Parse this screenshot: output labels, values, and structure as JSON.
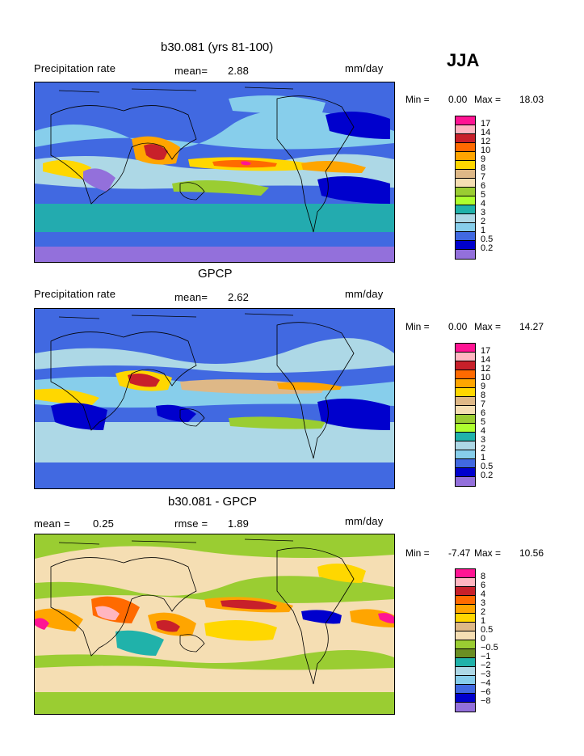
{
  "season": "JJA",
  "units": "mm/day",
  "panels": [
    {
      "title": "b30.081 (yrs 81-100)",
      "left_label": "Precipitation rate",
      "stat_label": "mean=",
      "stat_value": "2.88",
      "min_label": "Min =",
      "min_value": "0.00",
      "max_label": "Max =",
      "max_value": "18.03"
    },
    {
      "title": "GPCP",
      "left_label": "Precipitation rate",
      "stat_label": "mean=",
      "stat_value": "2.62",
      "min_label": "Min =",
      "min_value": "0.00",
      "max_label": "Max =",
      "max_value": "14.27"
    },
    {
      "title": "b30.081 - GPCP",
      "left_label": "mean =",
      "left_value": "0.25",
      "stat_label": "rmse =",
      "stat_value": "1.89",
      "min_label": "Min =",
      "min_value": "-7.47",
      "max_label": "Max =",
      "max_value": "10.56"
    }
  ],
  "colorbar_precip": {
    "labels": [
      "17",
      "14",
      "12",
      "10",
      "9",
      "8",
      "7",
      "6",
      "5",
      "4",
      "3",
      "2",
      "1",
      "0.5",
      "0.2"
    ],
    "colors": [
      "#ff1493",
      "#ffb6c1",
      "#c8202a",
      "#ff6a00",
      "#ffa500",
      "#ffd700",
      "#deb887",
      "#f5deb3",
      "#9acd32",
      "#adff2f",
      "#20b2aa",
      "#add8e6",
      "#87ceeb",
      "#4169e1",
      "#0000cd",
      "#9370db"
    ]
  },
  "colorbar_diff": {
    "labels": [
      "8",
      "6",
      "4",
      "3",
      "2",
      "1",
      "0.5",
      "0",
      "−0.5",
      "−1",
      "−2",
      "−3",
      "−4",
      "−6",
      "−8"
    ],
    "colors": [
      "#ff1493",
      "#ffb6c1",
      "#c8202a",
      "#ff6a00",
      "#ffa500",
      "#ffd700",
      "#deb887",
      "#f5deb3",
      "#9acd32",
      "#6b8e23",
      "#20b2aa",
      "#add8e6",
      "#87ceeb",
      "#4169e1",
      "#0000cd",
      "#9370db"
    ]
  }
}
